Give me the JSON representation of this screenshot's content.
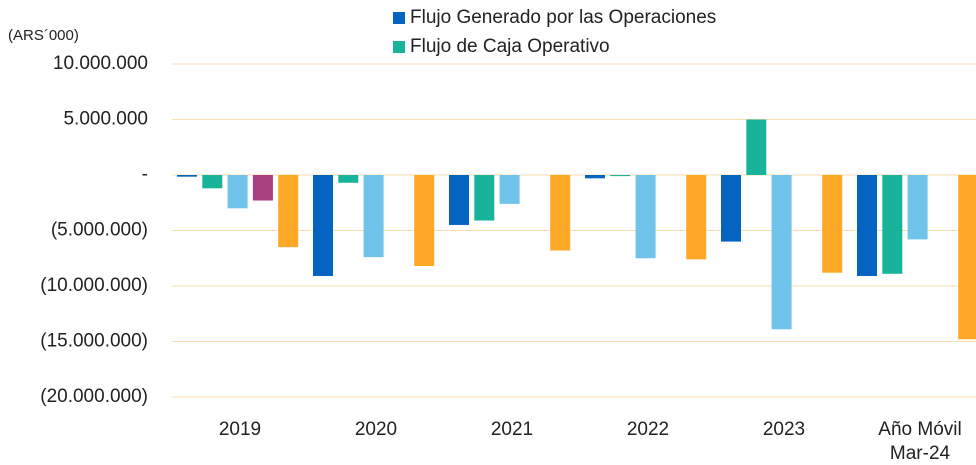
{
  "chart_data": {
    "type": "bar",
    "y_axis_label": "(ARS´000)",
    "categories": [
      "2019",
      "2020",
      "2021",
      "2022",
      "2023",
      "Año Móvil\nMar-24"
    ],
    "series": [
      {
        "name": "Flujo Generado por las Operaciones",
        "color": "#0563c1",
        "values": [
          -150000,
          -9100000,
          -4500000,
          -300000,
          -6000000,
          -9100000
        ]
      },
      {
        "name": "Flujo de Caja Operativo",
        "color": "#17b39a",
        "values": [
          -1200000,
          -700000,
          -4100000,
          -100000,
          5000000,
          -8900000
        ]
      },
      {
        "color": "#70c4ec",
        "values": [
          -3000000,
          -7400000,
          -2600000,
          -7500000,
          -13900000,
          -5800000
        ]
      },
      {
        "color": "#a8407e",
        "values": [
          -2300000,
          null,
          null,
          null,
          null,
          null
        ]
      },
      {
        "color": "#fba926",
        "values": [
          -6500000,
          -8200000,
          -6800000,
          -7600000,
          -8800000,
          -14800000
        ]
      }
    ],
    "ylim": [
      -20000000,
      10000000
    ],
    "yticks": [
      {
        "value": 10000000,
        "label": "10.000.000"
      },
      {
        "value": 5000000,
        "label": "5.000.000"
      },
      {
        "value": 0,
        "label": "-"
      },
      {
        "value": -5000000,
        "label": "(5.000.000)"
      },
      {
        "value": -10000000,
        "label": "(10.000.000)"
      },
      {
        "value": -15000000,
        "label": "(15.000.000)"
      },
      {
        "value": -20000000,
        "label": "(20.000.000)"
      }
    ],
    "grid": true
  }
}
